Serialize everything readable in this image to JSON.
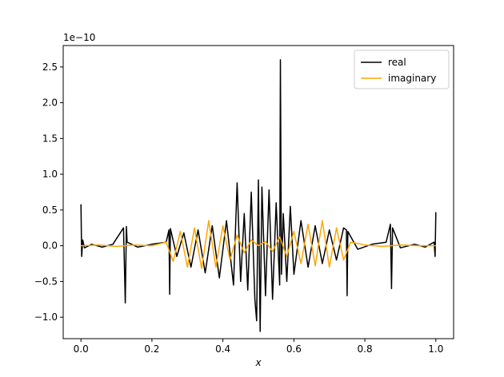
{
  "chart_data": {
    "type": "line",
    "title": "",
    "xlabel": "x",
    "ylabel": "",
    "offset_text": "1e−10",
    "xlim": [
      -0.05,
      1.05
    ],
    "ylim": [
      -1.3,
      2.8
    ],
    "y_scale": 1e-10,
    "x_ticks": [
      0.0,
      0.2,
      0.4,
      0.6,
      0.8,
      1.0
    ],
    "x_tick_labels": [
      "0.0",
      "0.2",
      "0.4",
      "0.6",
      "0.8",
      "1.0"
    ],
    "y_ticks": [
      -1.0,
      -0.5,
      0.0,
      0.5,
      1.0,
      1.5,
      2.0,
      2.5
    ],
    "y_tick_labels": [
      "−1.0",
      "−0.5",
      "0.0",
      "0.5",
      "1.0",
      "1.5",
      "2.0",
      "2.5"
    ],
    "grid": false,
    "legend_position": "top-right",
    "series": [
      {
        "name": "real",
        "color": "#000000",
        "x": [
          0.0,
          0.002,
          0.005,
          0.01,
          0.03,
          0.06,
          0.09,
          0.12,
          0.125,
          0.128,
          0.13,
          0.16,
          0.2,
          0.24,
          0.248,
          0.25,
          0.252,
          0.27,
          0.29,
          0.31,
          0.33,
          0.35,
          0.37,
          0.39,
          0.41,
          0.43,
          0.44,
          0.45,
          0.46,
          0.47,
          0.48,
          0.49,
          0.495,
          0.5,
          0.505,
          0.51,
          0.52,
          0.53,
          0.54,
          0.55,
          0.56,
          0.562,
          0.565,
          0.57,
          0.58,
          0.59,
          0.6,
          0.62,
          0.64,
          0.66,
          0.68,
          0.7,
          0.72,
          0.74,
          0.748,
          0.75,
          0.752,
          0.78,
          0.82,
          0.86,
          0.872,
          0.875,
          0.878,
          0.9,
          0.94,
          0.97,
          0.995,
          0.998,
          1.0
        ],
        "values": [
          0.58,
          -0.15,
          0.08,
          -0.03,
          0.02,
          -0.02,
          0.02,
          0.25,
          -0.8,
          0.27,
          0.05,
          -0.02,
          0.02,
          0.05,
          0.22,
          -0.68,
          0.24,
          -0.15,
          0.18,
          -0.3,
          0.22,
          -0.38,
          0.28,
          -0.45,
          0.35,
          -0.55,
          0.88,
          -0.5,
          0.45,
          -0.62,
          0.75,
          -0.75,
          -1.05,
          0.92,
          -1.2,
          0.82,
          -0.7,
          0.78,
          -0.75,
          0.6,
          -0.55,
          2.6,
          -0.4,
          0.45,
          -0.5,
          0.55,
          -0.4,
          0.35,
          -0.3,
          0.28,
          -0.25,
          0.22,
          -0.2,
          0.25,
          0.22,
          -0.7,
          0.2,
          -0.05,
          0.02,
          0.05,
          0.3,
          -0.6,
          0.25,
          -0.03,
          0.02,
          -0.02,
          0.05,
          -0.15,
          0.47
        ]
      },
      {
        "name": "imaginary",
        "color": "#ffa500",
        "x": [
          0.0,
          0.05,
          0.1,
          0.15,
          0.2,
          0.24,
          0.26,
          0.28,
          0.3,
          0.32,
          0.34,
          0.36,
          0.38,
          0.4,
          0.42,
          0.44,
          0.46,
          0.48,
          0.5,
          0.52,
          0.54,
          0.56,
          0.58,
          0.6,
          0.62,
          0.64,
          0.66,
          0.68,
          0.7,
          0.72,
          0.74,
          0.76,
          0.8,
          0.85,
          0.9,
          0.95,
          1.0
        ],
        "values": [
          0.0,
          0.01,
          -0.01,
          0.01,
          0.0,
          0.05,
          -0.22,
          0.2,
          -0.3,
          0.25,
          -0.32,
          0.35,
          -0.3,
          0.28,
          -0.2,
          0.15,
          -0.1,
          0.08,
          0.0,
          0.06,
          -0.08,
          0.12,
          -0.15,
          0.2,
          -0.25,
          0.3,
          -0.28,
          0.35,
          -0.3,
          0.25,
          -0.2,
          0.05,
          0.01,
          -0.01,
          0.01,
          0.0,
          0.0
        ]
      }
    ]
  }
}
